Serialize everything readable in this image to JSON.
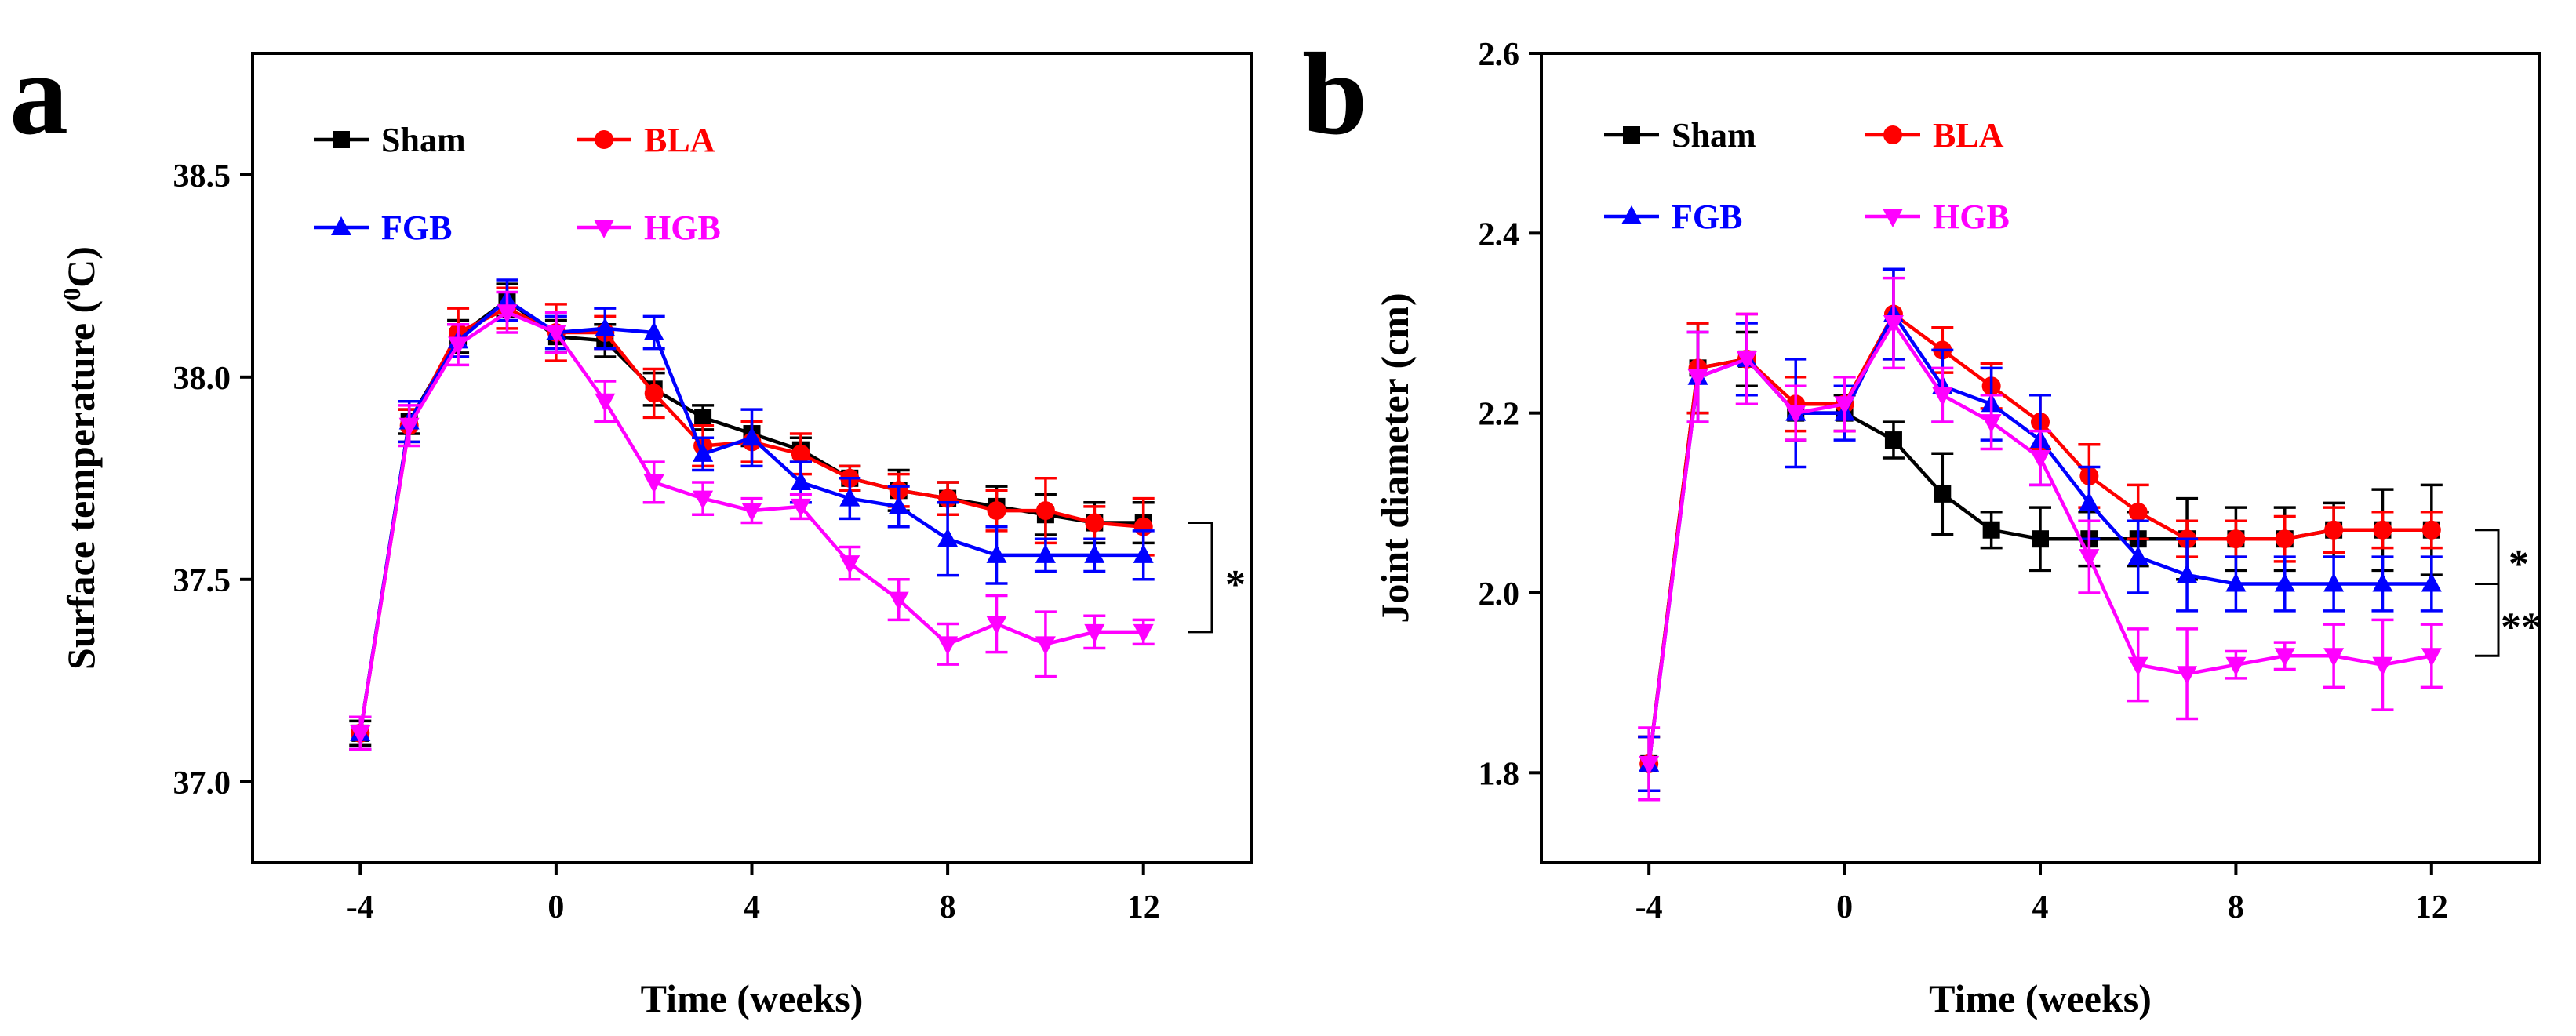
{
  "chart_data": [
    {
      "panel_label": "a",
      "type": "line",
      "xlabel": "Time (weeks)",
      "ylabel": "Surface temperature (",
      "ylabel_sup": "0",
      "ylabel_end": "C)",
      "xlim": [
        -6.2,
        14.2
      ],
      "ylim": [
        36.8,
        38.8
      ],
      "xticks": [
        -4,
        0,
        4,
        8,
        12
      ],
      "xtick_labels": [
        "-4",
        "0",
        "4",
        "8",
        "12"
      ],
      "yticks": [
        37.0,
        37.5,
        38.0,
        38.5
      ],
      "ytick_labels": [
        "37.0",
        "37.5",
        "38.0",
        "38.5"
      ],
      "x": [
        -4,
        -3,
        -2,
        -1,
        0,
        1,
        2,
        3,
        4,
        5,
        6,
        7,
        8,
        9,
        10,
        11,
        12
      ],
      "series": [
        {
          "name": "Sham",
          "color": "#000000",
          "marker": "square",
          "values": [
            37.12,
            37.89,
            38.1,
            38.19,
            38.1,
            38.09,
            37.97,
            37.9,
            37.86,
            37.82,
            37.75,
            37.72,
            37.7,
            37.68,
            37.66,
            37.64,
            37.64
          ],
          "errors": [
            0.03,
            0.03,
            0.04,
            0.04,
            0.04,
            0.04,
            0.04,
            0.03,
            0.03,
            0.03,
            0.03,
            0.05,
            0.04,
            0.05,
            0.05,
            0.05,
            0.05
          ]
        },
        {
          "name": "BLA",
          "color": "#ff0000",
          "marker": "circle",
          "values": [
            37.12,
            37.88,
            38.11,
            38.17,
            38.11,
            38.11,
            37.96,
            37.83,
            37.84,
            37.81,
            37.75,
            37.72,
            37.7,
            37.67,
            37.67,
            37.64,
            37.63
          ],
          "errors": [
            0.04,
            0.04,
            0.06,
            0.05,
            0.07,
            0.04,
            0.06,
            0.05,
            0.05,
            0.05,
            0.03,
            0.04,
            0.04,
            0.05,
            0.08,
            0.04,
            0.07
          ]
        },
        {
          "name": "FGB",
          "color": "#0000ff",
          "marker": "triangle-up",
          "values": [
            37.12,
            37.89,
            38.09,
            38.19,
            38.11,
            38.12,
            38.11,
            37.81,
            37.85,
            37.74,
            37.7,
            37.68,
            37.6,
            37.56,
            37.56,
            37.56,
            37.56
          ],
          "errors": [
            0.04,
            0.05,
            0.04,
            0.05,
            0.04,
            0.05,
            0.04,
            0.04,
            0.07,
            0.05,
            0.05,
            0.05,
            0.09,
            0.07,
            0.04,
            0.04,
            0.06
          ]
        },
        {
          "name": "HGB",
          "color": "#ff00ff",
          "marker": "triangle-down",
          "values": [
            37.12,
            37.88,
            38.08,
            38.16,
            38.11,
            37.94,
            37.74,
            37.7,
            37.67,
            37.68,
            37.54,
            37.45,
            37.34,
            37.39,
            37.34,
            37.37,
            37.37
          ],
          "errors": [
            0.04,
            0.05,
            0.05,
            0.05,
            0.05,
            0.05,
            0.05,
            0.04,
            0.03,
            0.03,
            0.04,
            0.05,
            0.05,
            0.07,
            0.08,
            0.04,
            0.03
          ]
        }
      ],
      "significance": [
        {
          "label": "*",
          "group_a": "Sham",
          "group_b": "HGB"
        }
      ]
    },
    {
      "panel_label": "b",
      "type": "line",
      "xlabel": "Time (weeks)",
      "ylabel": "Joint diameter (cm)",
      "xlim": [
        -6.2,
        14.2
      ],
      "ylim": [
        1.7,
        2.6
      ],
      "xticks": [
        -4,
        0,
        4,
        8,
        12
      ],
      "xtick_labels": [
        "-4",
        "0",
        "4",
        "8",
        "12"
      ],
      "yticks": [
        1.8,
        2.0,
        2.2,
        2.4,
        2.6
      ],
      "ytick_labels": [
        "1.8",
        "2.0",
        "2.2",
        "2.4",
        "2.6"
      ],
      "x": [
        -4,
        -3,
        -2,
        -1,
        0,
        1,
        2,
        3,
        4,
        5,
        6,
        7,
        8,
        9,
        10,
        11,
        12
      ],
      "series": [
        {
          "name": "Sham",
          "color": "#000000",
          "marker": "square",
          "values": [
            1.81,
            2.25,
            2.26,
            2.2,
            2.2,
            2.17,
            2.11,
            2.07,
            2.06,
            2.06,
            2.06,
            2.06,
            2.06,
            2.06,
            2.07,
            2.07,
            2.07
          ],
          "errors": [
            0.03,
            0.05,
            0.03,
            0.03,
            0.02,
            0.02,
            0.045,
            0.02,
            0.035,
            0.03,
            0.03,
            0.045,
            0.035,
            0.035,
            0.03,
            0.045,
            0.05
          ]
        },
        {
          "name": "BLA",
          "color": "#ff0000",
          "marker": "circle",
          "values": [
            1.81,
            2.25,
            2.26,
            2.21,
            2.21,
            2.31,
            2.27,
            2.23,
            2.19,
            2.13,
            2.09,
            2.06,
            2.06,
            2.06,
            2.07,
            2.07,
            2.07
          ],
          "errors": [
            0.03,
            0.05,
            0.05,
            0.03,
            0.03,
            0.05,
            0.025,
            0.025,
            0.03,
            0.035,
            0.03,
            0.02,
            0.02,
            0.025,
            0.025,
            0.02,
            0.02
          ]
        },
        {
          "name": "FGB",
          "color": "#0000ff",
          "marker": "triangle-up",
          "values": [
            1.81,
            2.24,
            2.26,
            2.2,
            2.2,
            2.31,
            2.23,
            2.21,
            2.17,
            2.1,
            2.04,
            2.02,
            2.01,
            2.01,
            2.01,
            2.01,
            2.01
          ],
          "errors": [
            0.03,
            0.05,
            0.04,
            0.06,
            0.03,
            0.05,
            0.04,
            0.04,
            0.05,
            0.04,
            0.04,
            0.04,
            0.03,
            0.03,
            0.03,
            0.03,
            0.03
          ]
        },
        {
          "name": "HGB",
          "color": "#ff00ff",
          "marker": "triangle-down",
          "values": [
            1.81,
            2.24,
            2.26,
            2.2,
            2.21,
            2.3,
            2.22,
            2.19,
            2.15,
            2.04,
            1.92,
            1.91,
            1.92,
            1.93,
            1.93,
            1.92,
            1.93
          ],
          "errors": [
            0.04,
            0.05,
            0.05,
            0.03,
            0.03,
            0.05,
            0.03,
            0.03,
            0.03,
            0.04,
            0.04,
            0.05,
            0.015,
            0.015,
            0.035,
            0.05,
            0.035
          ]
        }
      ],
      "significance": [
        {
          "label": "*",
          "group_a": "BLA",
          "group_b": "FGB"
        },
        {
          "label": "**",
          "group_a": "FGB",
          "group_b": "HGB"
        }
      ]
    }
  ]
}
